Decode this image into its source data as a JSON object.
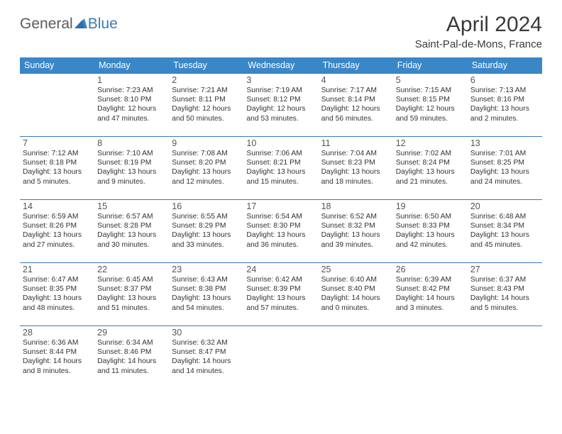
{
  "brand": {
    "general": "General",
    "blue": "Blue",
    "triangle_color": "#3a87c7"
  },
  "title": "April 2024",
  "location": "Saint-Pal-de-Mons, France",
  "day_headers": [
    "Sunday",
    "Monday",
    "Tuesday",
    "Wednesday",
    "Thursday",
    "Friday",
    "Saturday"
  ],
  "header_bg": "#3a87c7",
  "header_fg": "#ffffff",
  "rule_color": "#3a7ab8",
  "weeks": [
    [
      null,
      {
        "n": "1",
        "sr": "Sunrise: 7:23 AM",
        "ss": "Sunset: 8:10 PM",
        "dl1": "Daylight: 12 hours",
        "dl2": "and 47 minutes."
      },
      {
        "n": "2",
        "sr": "Sunrise: 7:21 AM",
        "ss": "Sunset: 8:11 PM",
        "dl1": "Daylight: 12 hours",
        "dl2": "and 50 minutes."
      },
      {
        "n": "3",
        "sr": "Sunrise: 7:19 AM",
        "ss": "Sunset: 8:12 PM",
        "dl1": "Daylight: 12 hours",
        "dl2": "and 53 minutes."
      },
      {
        "n": "4",
        "sr": "Sunrise: 7:17 AM",
        "ss": "Sunset: 8:14 PM",
        "dl1": "Daylight: 12 hours",
        "dl2": "and 56 minutes."
      },
      {
        "n": "5",
        "sr": "Sunrise: 7:15 AM",
        "ss": "Sunset: 8:15 PM",
        "dl1": "Daylight: 12 hours",
        "dl2": "and 59 minutes."
      },
      {
        "n": "6",
        "sr": "Sunrise: 7:13 AM",
        "ss": "Sunset: 8:16 PM",
        "dl1": "Daylight: 13 hours",
        "dl2": "and 2 minutes."
      }
    ],
    [
      {
        "n": "7",
        "sr": "Sunrise: 7:12 AM",
        "ss": "Sunset: 8:18 PM",
        "dl1": "Daylight: 13 hours",
        "dl2": "and 5 minutes."
      },
      {
        "n": "8",
        "sr": "Sunrise: 7:10 AM",
        "ss": "Sunset: 8:19 PM",
        "dl1": "Daylight: 13 hours",
        "dl2": "and 9 minutes."
      },
      {
        "n": "9",
        "sr": "Sunrise: 7:08 AM",
        "ss": "Sunset: 8:20 PM",
        "dl1": "Daylight: 13 hours",
        "dl2": "and 12 minutes."
      },
      {
        "n": "10",
        "sr": "Sunrise: 7:06 AM",
        "ss": "Sunset: 8:21 PM",
        "dl1": "Daylight: 13 hours",
        "dl2": "and 15 minutes."
      },
      {
        "n": "11",
        "sr": "Sunrise: 7:04 AM",
        "ss": "Sunset: 8:23 PM",
        "dl1": "Daylight: 13 hours",
        "dl2": "and 18 minutes."
      },
      {
        "n": "12",
        "sr": "Sunrise: 7:02 AM",
        "ss": "Sunset: 8:24 PM",
        "dl1": "Daylight: 13 hours",
        "dl2": "and 21 minutes."
      },
      {
        "n": "13",
        "sr": "Sunrise: 7:01 AM",
        "ss": "Sunset: 8:25 PM",
        "dl1": "Daylight: 13 hours",
        "dl2": "and 24 minutes."
      }
    ],
    [
      {
        "n": "14",
        "sr": "Sunrise: 6:59 AM",
        "ss": "Sunset: 8:26 PM",
        "dl1": "Daylight: 13 hours",
        "dl2": "and 27 minutes."
      },
      {
        "n": "15",
        "sr": "Sunrise: 6:57 AM",
        "ss": "Sunset: 8:28 PM",
        "dl1": "Daylight: 13 hours",
        "dl2": "and 30 minutes."
      },
      {
        "n": "16",
        "sr": "Sunrise: 6:55 AM",
        "ss": "Sunset: 8:29 PM",
        "dl1": "Daylight: 13 hours",
        "dl2": "and 33 minutes."
      },
      {
        "n": "17",
        "sr": "Sunrise: 6:54 AM",
        "ss": "Sunset: 8:30 PM",
        "dl1": "Daylight: 13 hours",
        "dl2": "and 36 minutes."
      },
      {
        "n": "18",
        "sr": "Sunrise: 6:52 AM",
        "ss": "Sunset: 8:32 PM",
        "dl1": "Daylight: 13 hours",
        "dl2": "and 39 minutes."
      },
      {
        "n": "19",
        "sr": "Sunrise: 6:50 AM",
        "ss": "Sunset: 8:33 PM",
        "dl1": "Daylight: 13 hours",
        "dl2": "and 42 minutes."
      },
      {
        "n": "20",
        "sr": "Sunrise: 6:48 AM",
        "ss": "Sunset: 8:34 PM",
        "dl1": "Daylight: 13 hours",
        "dl2": "and 45 minutes."
      }
    ],
    [
      {
        "n": "21",
        "sr": "Sunrise: 6:47 AM",
        "ss": "Sunset: 8:35 PM",
        "dl1": "Daylight: 13 hours",
        "dl2": "and 48 minutes."
      },
      {
        "n": "22",
        "sr": "Sunrise: 6:45 AM",
        "ss": "Sunset: 8:37 PM",
        "dl1": "Daylight: 13 hours",
        "dl2": "and 51 minutes."
      },
      {
        "n": "23",
        "sr": "Sunrise: 6:43 AM",
        "ss": "Sunset: 8:38 PM",
        "dl1": "Daylight: 13 hours",
        "dl2": "and 54 minutes."
      },
      {
        "n": "24",
        "sr": "Sunrise: 6:42 AM",
        "ss": "Sunset: 8:39 PM",
        "dl1": "Daylight: 13 hours",
        "dl2": "and 57 minutes."
      },
      {
        "n": "25",
        "sr": "Sunrise: 6:40 AM",
        "ss": "Sunset: 8:40 PM",
        "dl1": "Daylight: 14 hours",
        "dl2": "and 0 minutes."
      },
      {
        "n": "26",
        "sr": "Sunrise: 6:39 AM",
        "ss": "Sunset: 8:42 PM",
        "dl1": "Daylight: 14 hours",
        "dl2": "and 3 minutes."
      },
      {
        "n": "27",
        "sr": "Sunrise: 6:37 AM",
        "ss": "Sunset: 8:43 PM",
        "dl1": "Daylight: 14 hours",
        "dl2": "and 5 minutes."
      }
    ],
    [
      {
        "n": "28",
        "sr": "Sunrise: 6:36 AM",
        "ss": "Sunset: 8:44 PM",
        "dl1": "Daylight: 14 hours",
        "dl2": "and 8 minutes."
      },
      {
        "n": "29",
        "sr": "Sunrise: 6:34 AM",
        "ss": "Sunset: 8:46 PM",
        "dl1": "Daylight: 14 hours",
        "dl2": "and 11 minutes."
      },
      {
        "n": "30",
        "sr": "Sunrise: 6:32 AM",
        "ss": "Sunset: 8:47 PM",
        "dl1": "Daylight: 14 hours",
        "dl2": "and 14 minutes."
      },
      null,
      null,
      null,
      null
    ]
  ]
}
